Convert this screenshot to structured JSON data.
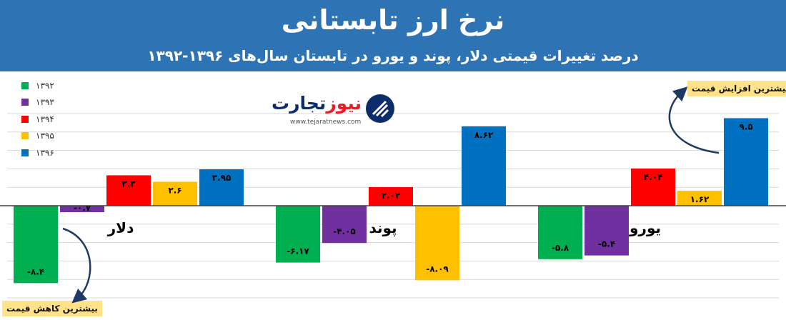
{
  "header": {
    "title": "نرخ ارز تابستانی",
    "subtitle": "درصد تغییرات قیمتی دلار، پوند و یورو در تابستان سال‌های ۱۳۹۶-۱۳۹۲"
  },
  "logo": {
    "name_part1": "تجارت",
    "name_part2": "نیوز",
    "url": "www.tejaratnews.com"
  },
  "callouts": {
    "max": "بیشترین افزایش قیمت",
    "min": "بیشترین کاهش قیمت"
  },
  "chart_data": {
    "type": "bar",
    "categories": [
      "دلار",
      "پوند",
      "یورو"
    ],
    "series": [
      {
        "name": "۱۳۹۲",
        "color": "#00b050",
        "values": [
          -8.4,
          -6.17,
          -5.8
        ],
        "labels": [
          "-۸.۴",
          "-۶.۱۷",
          "-۵.۸"
        ]
      },
      {
        "name": "۱۳۹۳",
        "color": "#7030a0",
        "values": [
          -0.7,
          -4.05,
          -5.4
        ],
        "labels": [
          "-۰.۷",
          "-۴.۰۵",
          "-۵.۴"
        ]
      },
      {
        "name": "۱۳۹۴",
        "color": "#ff0000",
        "values": [
          3.3,
          2.02,
          4.04
        ],
        "labels": [
          "۳.۳",
          "۲.۰۲",
          "۴.۰۴"
        ]
      },
      {
        "name": "۱۳۹۵",
        "color": "#ffc000",
        "values": [
          2.6,
          -8.09,
          1.62
        ],
        "labels": [
          "۲.۶",
          "-۸.۰۹",
          "۱.۶۲"
        ]
      },
      {
        "name": "۱۳۹۶",
        "color": "#0070c0",
        "values": [
          3.95,
          8.62,
          9.5
        ],
        "labels": [
          "۳.۹۵",
          "۸.۶۲",
          "۹.۵"
        ]
      }
    ],
    "ylim": [
      -10,
      10
    ],
    "grid": true,
    "legend": "top-left"
  }
}
